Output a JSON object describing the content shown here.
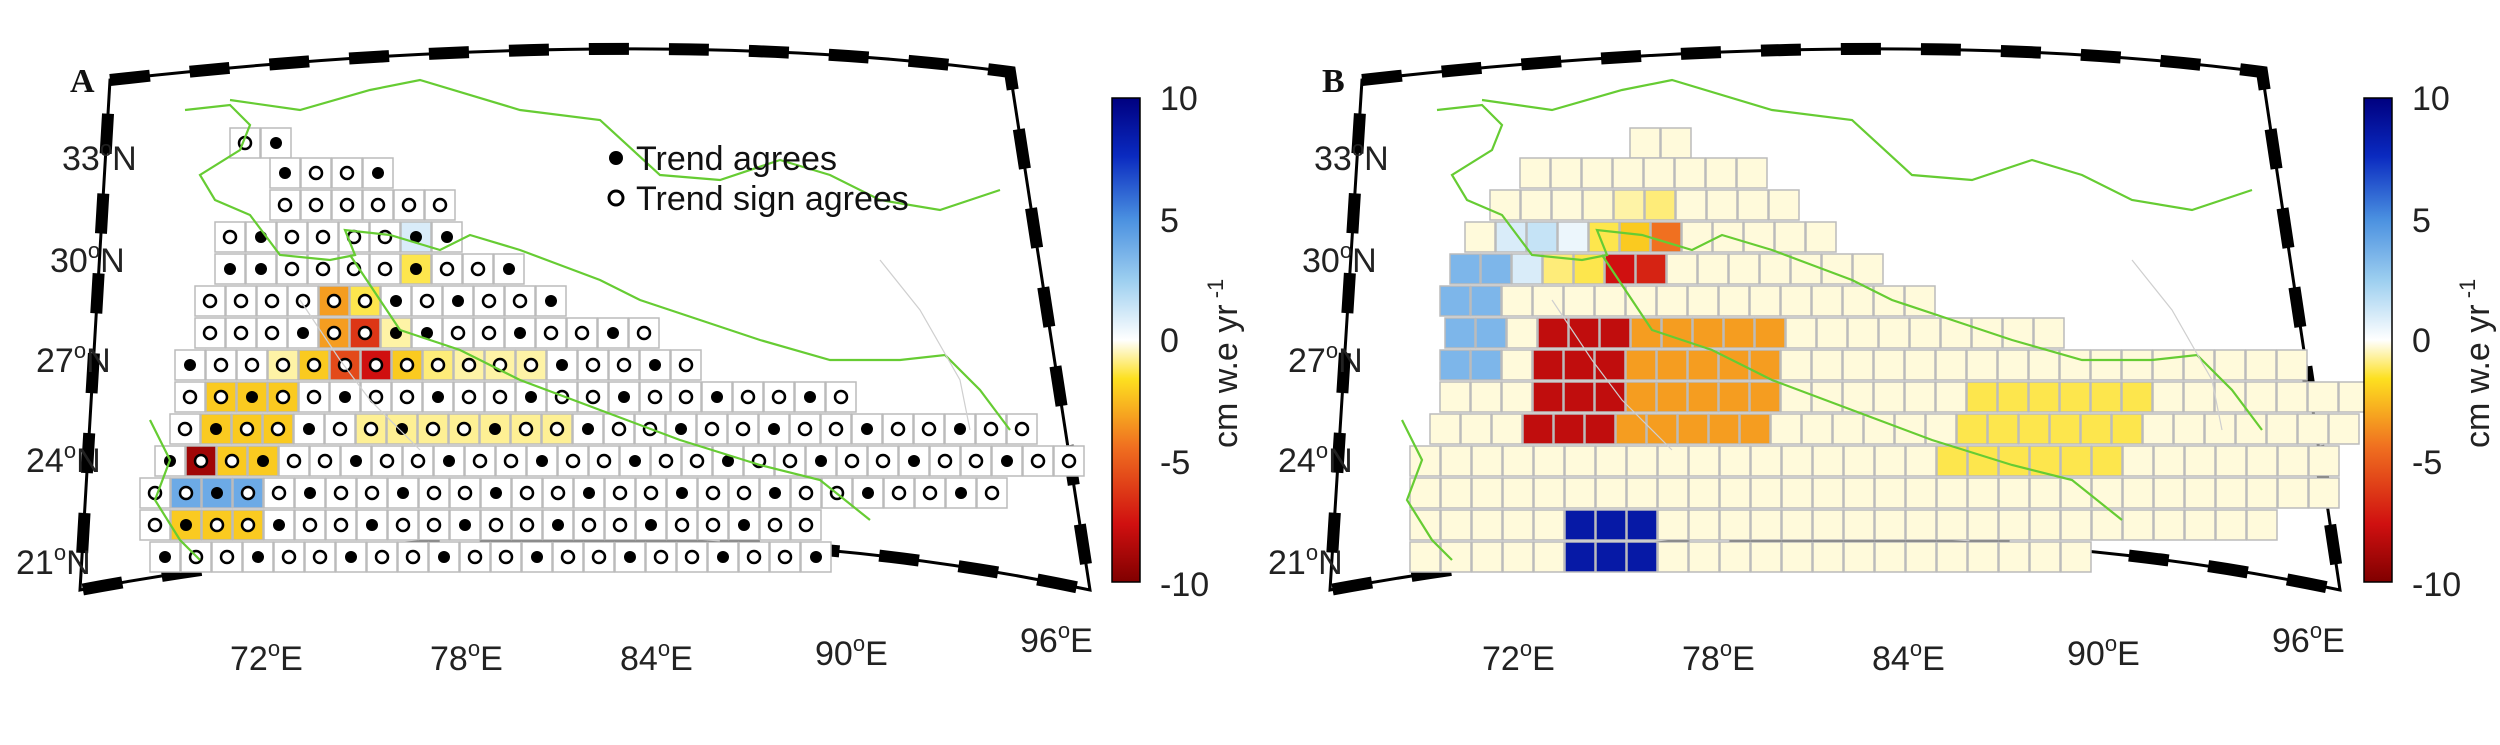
{
  "panels": [
    {
      "letter": "A",
      "lat_ticks": [
        "33",
        "30",
        "27",
        "24",
        "21"
      ],
      "lon_ticks": [
        "72",
        "78",
        "84",
        "90",
        "96"
      ],
      "lat_suffix": "N",
      "lon_suffix": "E",
      "legend": {
        "filled_marker_label": "Trend agrees",
        "open_marker_label": "Trend sign agrees"
      },
      "colorbar": {
        "ticks": [
          "10",
          "5",
          "0",
          "-5",
          "-10"
        ],
        "label": "cm w.e yr"
      }
    },
    {
      "letter": "B",
      "lat_ticks": [
        "33",
        "30",
        "27",
        "24",
        "21"
      ],
      "lon_ticks": [
        "72",
        "78",
        "84",
        "90",
        "96"
      ],
      "lat_suffix": "N",
      "lon_suffix": "E",
      "colorbar": {
        "ticks": [
          "10",
          "5",
          "0",
          "-5",
          "-10"
        ],
        "label": "cm w.e yr"
      }
    }
  ],
  "colors": {
    "border_line": "#66cc33",
    "cell_outline": "#bbbbbb",
    "frame_black": "#000000",
    "colormap": [
      "#800000",
      "#d01010",
      "#f07020",
      "#fde020",
      "#ffffff",
      "#9fd0f0",
      "#4a90e0",
      "#0a2ac0",
      "#000080"
    ]
  },
  "map_data": {
    "type": "gridded trend map",
    "value_range": [
      -10,
      10
    ],
    "units": "cm w.e yr-1",
    "grid_rows_lat": [
      33.5,
      32.5,
      31.5,
      30.5,
      29.5,
      28.5,
      27.5,
      26.5,
      25.5,
      24.5,
      23.5,
      22.5,
      21.5,
      20.5
    ],
    "panel_A_cells": [
      [
        1,
        4,
        "-",
        0
      ],
      [
        1,
        5,
        "-",
        0
      ],
      [
        2,
        2,
        "o",
        0
      ],
      [
        2,
        3,
        "o",
        0
      ],
      [
        2,
        4,
        "o",
        0
      ],
      [
        2,
        5,
        "o",
        0
      ],
      [
        3,
        2,
        "o",
        0
      ],
      [
        3,
        3,
        "o",
        0
      ],
      [
        3,
        4,
        "o",
        0
      ],
      [
        3,
        5,
        "o",
        0
      ],
      [
        3,
        6,
        "-",
        1
      ],
      [
        4,
        1,
        "-",
        0
      ],
      [
        4,
        2,
        "o",
        0
      ],
      [
        4,
        3,
        "o",
        0
      ],
      [
        4,
        4,
        "o",
        0
      ],
      [
        4,
        5,
        "o",
        0
      ],
      [
        4,
        6,
        "-",
        -2
      ],
      [
        5,
        1,
        "o",
        0
      ],
      [
        5,
        2,
        "o",
        0
      ],
      [
        5,
        3,
        "o",
        0
      ],
      [
        5,
        4,
        "o",
        -4
      ],
      [
        5,
        5,
        "o",
        -2
      ],
      [
        5,
        6,
        "-",
        0
      ],
      [
        6,
        0,
        "o",
        0
      ],
      [
        6,
        1,
        "o",
        0
      ],
      [
        6,
        2,
        "o",
        0
      ],
      [
        6,
        3,
        "-",
        0
      ],
      [
        6,
        4,
        "o",
        -4
      ],
      [
        6,
        5,
        "o",
        -6.5
      ],
      [
        6,
        6,
        "-",
        -1
      ],
      [
        7,
        1,
        "o",
        0
      ],
      [
        7,
        2,
        "o",
        0
      ],
      [
        7,
        3,
        "o",
        -1
      ],
      [
        7,
        4,
        "o",
        -3
      ],
      [
        7,
        5,
        "o",
        -6
      ],
      [
        7,
        6,
        "o",
        -7.5
      ],
      [
        7,
        7,
        "o",
        -3
      ],
      [
        7,
        8,
        "o",
        -1.5
      ],
      [
        7,
        9,
        "o",
        -1
      ],
      [
        7,
        10,
        "o",
        -1
      ],
      [
        7,
        11,
        "o",
        -1
      ]
    ],
    "panel_B_cells": [
      [
        2,
        3,
        "-",
        -0.5
      ],
      [
        2,
        4,
        "-",
        -1
      ],
      [
        2,
        5,
        "-",
        -1.5
      ],
      [
        3,
        1,
        "-",
        1
      ],
      [
        3,
        2,
        "-",
        1.5
      ],
      [
        3,
        3,
        "-",
        0.5
      ],
      [
        3,
        4,
        "-",
        -2
      ],
      [
        3,
        5,
        "-",
        -3
      ],
      [
        3,
        6,
        "-",
        -5
      ],
      [
        4,
        0,
        "-",
        3
      ],
      [
        4,
        1,
        "-",
        3.5
      ],
      [
        4,
        2,
        "-",
        1
      ],
      [
        4,
        3,
        "-",
        -1.5
      ],
      [
        4,
        4,
        "-",
        -2
      ],
      [
        4,
        5,
        "-",
        -7.5
      ],
      [
        4,
        6,
        "-",
        -7
      ]
    ]
  }
}
